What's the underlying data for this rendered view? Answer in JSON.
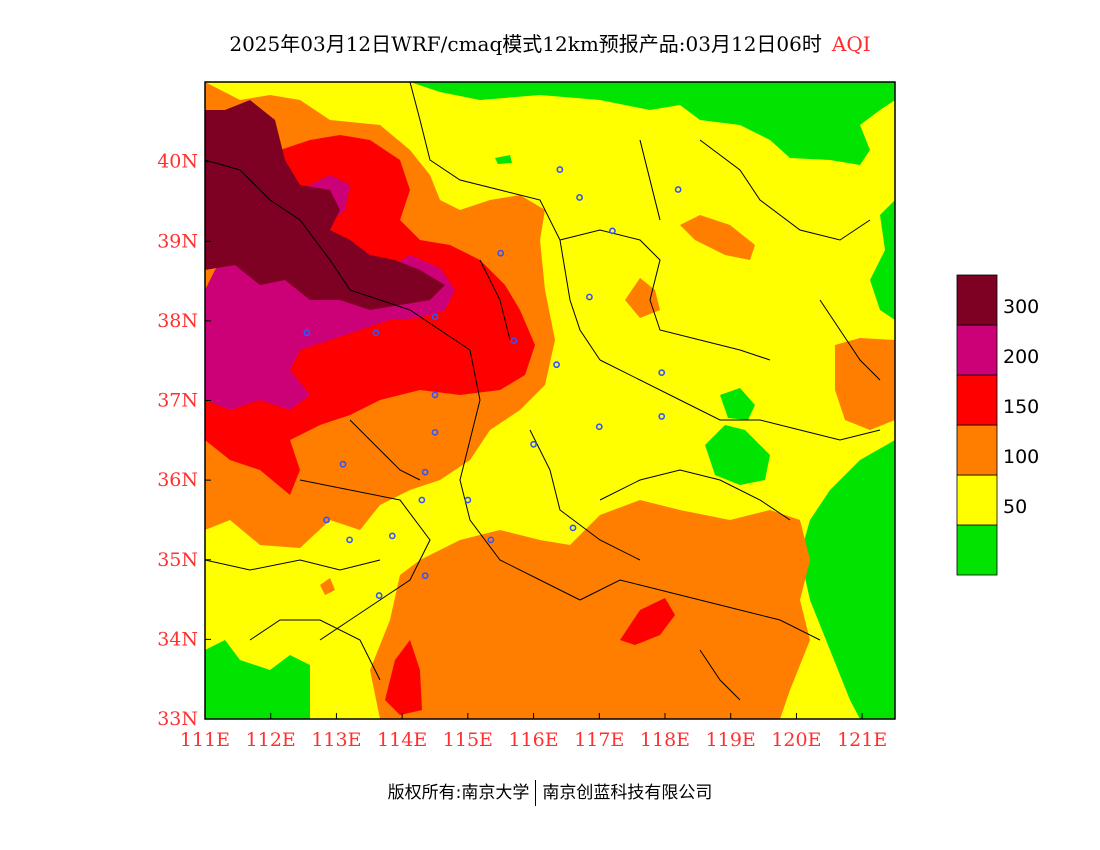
{
  "title": {
    "main": "2025年03月12日WRF/cmaq模式12km预报产品:03月12日06时",
    "variable": "AQI"
  },
  "map": {
    "lon_range": [
      111,
      121.5
    ],
    "lat_range": [
      33,
      41
    ],
    "x_ticks": [
      {
        "lon": 111,
        "label": "111E"
      },
      {
        "lon": 112,
        "label": "112E"
      },
      {
        "lon": 113,
        "label": "113E"
      },
      {
        "lon": 114,
        "label": "114E"
      },
      {
        "lon": 115,
        "label": "115E"
      },
      {
        "lon": 116,
        "label": "116E"
      },
      {
        "lon": 117,
        "label": "117E"
      },
      {
        "lon": 118,
        "label": "118E"
      },
      {
        "lon": 119,
        "label": "119E"
      },
      {
        "lon": 120,
        "label": "120E"
      },
      {
        "lon": 121,
        "label": "121E"
      }
    ],
    "y_ticks": [
      {
        "lat": 33,
        "label": "33N"
      },
      {
        "lat": 34,
        "label": "34N"
      },
      {
        "lat": 35,
        "label": "35N"
      },
      {
        "lat": 36,
        "label": "36N"
      },
      {
        "lat": 37,
        "label": "37N"
      },
      {
        "lat": 38,
        "label": "38N"
      },
      {
        "lat": 39,
        "label": "39N"
      },
      {
        "lat": 40,
        "label": "40N"
      }
    ],
    "tick_color": "#ff3030",
    "city_markers": [
      {
        "lon": 116.4,
        "lat": 39.9
      },
      {
        "lon": 116.7,
        "lat": 39.55
      },
      {
        "lon": 118.2,
        "lat": 39.65
      },
      {
        "lon": 117.2,
        "lat": 39.13
      },
      {
        "lon": 115.5,
        "lat": 38.85
      },
      {
        "lon": 116.85,
        "lat": 38.3
      },
      {
        "lon": 114.5,
        "lat": 38.05
      },
      {
        "lon": 113.6,
        "lat": 37.85
      },
      {
        "lon": 112.55,
        "lat": 37.85
      },
      {
        "lon": 115.7,
        "lat": 37.75
      },
      {
        "lon": 116.35,
        "lat": 37.45
      },
      {
        "lon": 117.95,
        "lat": 37.35
      },
      {
        "lon": 114.5,
        "lat": 37.07
      },
      {
        "lon": 117.95,
        "lat": 36.8
      },
      {
        "lon": 117.0,
        "lat": 36.67
      },
      {
        "lon": 114.5,
        "lat": 36.6
      },
      {
        "lon": 116.0,
        "lat": 36.45
      },
      {
        "lon": 113.1,
        "lat": 36.2
      },
      {
        "lon": 114.35,
        "lat": 36.1
      },
      {
        "lon": 114.3,
        "lat": 35.75
      },
      {
        "lon": 115.0,
        "lat": 35.75
      },
      {
        "lon": 112.85,
        "lat": 35.5
      },
      {
        "lon": 116.6,
        "lat": 35.4
      },
      {
        "lon": 113.2,
        "lat": 35.25
      },
      {
        "lon": 113.85,
        "lat": 35.3
      },
      {
        "lon": 115.35,
        "lat": 35.25
      },
      {
        "lon": 114.35,
        "lat": 34.8
      },
      {
        "lon": 113.65,
        "lat": 34.55
      }
    ]
  },
  "legend": {
    "levels": [
      {
        "color": "#00e400"
      },
      {
        "color": "#ffff00",
        "label": "50"
      },
      {
        "color": "#ff7e00",
        "label": "100"
      },
      {
        "color": "#ff0000",
        "label": "150"
      },
      {
        "color": "#cc0077",
        "label": "200"
      },
      {
        "color": "#7e0023",
        "label": "300"
      }
    ]
  },
  "credits": {
    "left": "版权所有:南京大学",
    "right": "南京创蓝科技有限公司"
  }
}
